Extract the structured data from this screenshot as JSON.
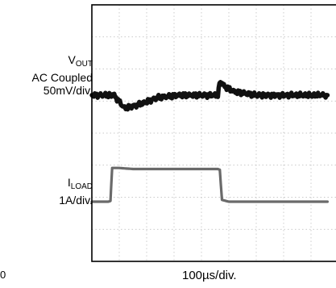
{
  "chart_data": {
    "type": "line",
    "xlabel": "100µs/div.",
    "x_units_per_div": "100µs",
    "divisions": {
      "x": 10,
      "y": 8
    },
    "corner_label": "0",
    "traces": [
      {
        "name_main": "V",
        "name_sub": "OUT",
        "detail_lines": [
          "AC Coupled",
          "50mV/div."
        ],
        "color": "#111111",
        "style": "thick-noisy",
        "x": [
          0,
          0.6,
          0.75,
          0.85,
          1.2,
          1.8,
          2.4,
          3.2,
          4.0,
          4.6,
          4.66,
          4.72,
          4.85,
          5.2,
          6.0,
          7.0,
          8.0,
          8.4,
          8.6
        ],
        "y": [
          0,
          0,
          0,
          -0.05,
          -0.45,
          -0.3,
          -0.08,
          0,
          0,
          0,
          0.45,
          0.38,
          0.3,
          0.12,
          0,
          0,
          0,
          0,
          0
        ]
      },
      {
        "name_main": "I",
        "name_sub": "LOAD",
        "detail_lines": [
          "1A/div."
        ],
        "color": "#6a6a6a",
        "style": "thick-smooth",
        "x": [
          0,
          0.6,
          0.68,
          0.74,
          1.0,
          1.5,
          2.0,
          3.0,
          4.0,
          4.6,
          4.67,
          4.75,
          5.0,
          6.0,
          7.0,
          8.0,
          8.6
        ],
        "y": [
          0,
          0,
          0.02,
          0.95,
          0.95,
          0.92,
          0.92,
          0.92,
          0.92,
          0.92,
          0.9,
          0.05,
          0.0,
          0,
          0,
          0,
          0
        ]
      }
    ]
  }
}
